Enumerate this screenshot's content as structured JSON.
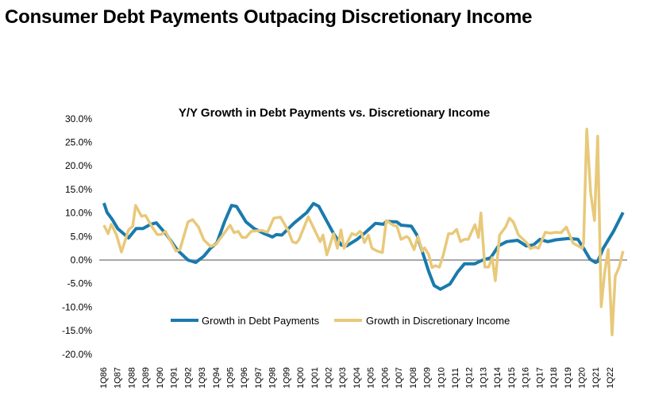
{
  "page_title": "Consumer Debt Payments Outpacing Discretionary Income",
  "chart_data": {
    "type": "line",
    "title": "Y/Y Growth in Debt Payments vs. Discretionary Income",
    "xlabel": "",
    "ylabel": "",
    "ylim": [
      -20,
      30
    ],
    "yticks": [
      30,
      25,
      20,
      15,
      10,
      5,
      0,
      -5,
      -10,
      -15,
      -20
    ],
    "ytick_labels": [
      "30.0%",
      "25.0%",
      "20.0%",
      "15.0%",
      "10.0%",
      "5.0%",
      "0.0%",
      "-5.0%",
      "-10.0%",
      "-15.0%",
      "-20.0%"
    ],
    "xtick_labels": [
      "1Q86",
      "1Q87",
      "1Q88",
      "1Q89",
      "1Q90",
      "1Q91",
      "1Q92",
      "1Q93",
      "1Q94",
      "1Q95",
      "1Q96",
      "1Q97",
      "1Q98",
      "1Q99",
      "1Q00",
      "1Q01",
      "1Q02",
      "1Q03",
      "1Q04",
      "1Q05",
      "1Q06",
      "1Q07",
      "1Q08",
      "1Q09",
      "1Q10",
      "1Q11",
      "1Q12",
      "1Q13",
      "1Q14",
      "1Q15",
      "1Q16",
      "1Q17",
      "1Q18",
      "1Q19",
      "1Q20",
      "1Q21",
      "1Q22"
    ],
    "x_start": "1Q86",
    "legend_position": "bottom-center",
    "grid": false,
    "series": [
      {
        "name": "Growth in Debt Payments",
        "color": "#1a7aad",
        "points": [
          [
            0.2,
            12.1
          ],
          [
            1.1,
            10.1
          ],
          [
            2.6,
            8.6
          ],
          [
            4.1,
            6.7
          ],
          [
            7.2,
            4.7
          ],
          [
            9.4,
            6.7
          ],
          [
            11.3,
            6.7
          ],
          [
            13.5,
            7.6
          ],
          [
            15.1,
            7.9
          ],
          [
            18.1,
            5.3
          ],
          [
            21.0,
            2.2
          ],
          [
            24.1,
            0.0
          ],
          [
            26.3,
            -0.5
          ],
          [
            28.6,
            0.8
          ],
          [
            30.5,
            2.5
          ],
          [
            32.3,
            3.6
          ],
          [
            34.5,
            8.1
          ],
          [
            36.5,
            11.6
          ],
          [
            37.9,
            11.4
          ],
          [
            40.6,
            8.1
          ],
          [
            42.9,
            6.7
          ],
          [
            45.8,
            5.6
          ],
          [
            48.1,
            4.9
          ],
          [
            49.2,
            5.4
          ],
          [
            50.8,
            5.3
          ],
          [
            54.2,
            7.8
          ],
          [
            57.9,
            10.1
          ],
          [
            59.8,
            12.0
          ],
          [
            61.3,
            11.4
          ],
          [
            65.5,
            5.6
          ],
          [
            67.7,
            3.2
          ],
          [
            69.2,
            3.0
          ],
          [
            72.2,
            4.4
          ],
          [
            74.5,
            5.8
          ],
          [
            77.4,
            7.8
          ],
          [
            79.7,
            7.6
          ],
          [
            80.5,
            8.2
          ],
          [
            83.5,
            8.1
          ],
          [
            84.7,
            7.4
          ],
          [
            87.6,
            7.2
          ],
          [
            89.2,
            5.3
          ],
          [
            90.7,
            1.9
          ],
          [
            92.6,
            -2.5
          ],
          [
            94.1,
            -5.4
          ],
          [
            95.9,
            -6.2
          ],
          [
            98.6,
            -5.1
          ],
          [
            100.8,
            -2.5
          ],
          [
            102.7,
            -0.8
          ],
          [
            105.6,
            -0.8
          ],
          [
            107.9,
            0.0
          ],
          [
            110.2,
            0.5
          ],
          [
            112.4,
            3.0
          ],
          [
            114.7,
            3.9
          ],
          [
            117.8,
            4.2
          ],
          [
            120.3,
            3.0
          ],
          [
            122.3,
            3.2
          ],
          [
            124.2,
            4.4
          ],
          [
            126.4,
            3.9
          ],
          [
            128.7,
            4.3
          ],
          [
            132.4,
            4.6
          ],
          [
            135.0,
            4.4
          ],
          [
            136.6,
            2.5
          ],
          [
            138.4,
            0.2
          ],
          [
            140.0,
            -0.5
          ],
          [
            140.6,
            -0.3
          ],
          [
            142.2,
            2.5
          ],
          [
            145.1,
            6.1
          ],
          [
            147.8,
            10.1
          ]
        ]
      },
      {
        "name": "Growth in Discretionary Income",
        "color": "#e8c97a",
        "points": [
          [
            0.2,
            7.4
          ],
          [
            1.4,
            5.6
          ],
          [
            2.3,
            7.6
          ],
          [
            3.8,
            5.3
          ],
          [
            5.2,
            1.7
          ],
          [
            7.2,
            6.4
          ],
          [
            8.4,
            7.2
          ],
          [
            9.2,
            11.6
          ],
          [
            10.9,
            9.3
          ],
          [
            12.0,
            9.5
          ],
          [
            13.9,
            7.0
          ],
          [
            15.4,
            5.4
          ],
          [
            16.5,
            5.4
          ],
          [
            17.7,
            6.1
          ],
          [
            20.7,
            1.9
          ],
          [
            21.8,
            2.2
          ],
          [
            24.1,
            8.1
          ],
          [
            25.4,
            8.6
          ],
          [
            27.1,
            7.0
          ],
          [
            28.6,
            4.3
          ],
          [
            30.5,
            2.9
          ],
          [
            32.0,
            3.3
          ],
          [
            36.1,
            7.4
          ],
          [
            37.2,
            5.8
          ],
          [
            38.4,
            6.1
          ],
          [
            39.5,
            4.8
          ],
          [
            40.6,
            4.8
          ],
          [
            42.1,
            6.1
          ],
          [
            45.1,
            6.3
          ],
          [
            46.7,
            5.9
          ],
          [
            48.5,
            8.9
          ],
          [
            50.4,
            9.1
          ],
          [
            52.7,
            6.1
          ],
          [
            53.8,
            3.9
          ],
          [
            54.9,
            3.6
          ],
          [
            55.7,
            4.4
          ],
          [
            58.3,
            9.2
          ],
          [
            61.7,
            3.9
          ],
          [
            62.5,
            5.3
          ],
          [
            63.6,
            1.1
          ],
          [
            65.5,
            5.6
          ],
          [
            66.6,
            2.5
          ],
          [
            67.6,
            6.4
          ],
          [
            68.5,
            2.5
          ],
          [
            70.7,
            5.6
          ],
          [
            71.9,
            5.3
          ],
          [
            73.0,
            6.1
          ],
          [
            73.4,
            5.8
          ],
          [
            74.3,
            3.7
          ],
          [
            75.4,
            5.3
          ],
          [
            76.4,
            2.5
          ],
          [
            77.9,
            1.9
          ],
          [
            79.4,
            1.6
          ],
          [
            80.5,
            8.4
          ],
          [
            82.4,
            7.4
          ],
          [
            83.5,
            7.2
          ],
          [
            84.7,
            4.4
          ],
          [
            86.2,
            5.0
          ],
          [
            86.9,
            4.7
          ],
          [
            88.4,
            2.2
          ],
          [
            89.5,
            5.0
          ],
          [
            90.7,
            1.9
          ],
          [
            91.4,
            2.6
          ],
          [
            92.6,
            1.1
          ],
          [
            93.5,
            -1.6
          ],
          [
            94.4,
            -1.2
          ],
          [
            95.6,
            -1.5
          ],
          [
            96.7,
            1.1
          ],
          [
            98.2,
            5.6
          ],
          [
            99.3,
            5.6
          ],
          [
            100.5,
            6.5
          ],
          [
            101.6,
            3.9
          ],
          [
            102.7,
            4.4
          ],
          [
            103.8,
            4.4
          ],
          [
            105.7,
            7.5
          ],
          [
            106.7,
            4.8
          ],
          [
            107.4,
            10.0
          ],
          [
            108.5,
            -1.5
          ],
          [
            109.6,
            -1.5
          ],
          [
            110.6,
            0.5
          ],
          [
            111.5,
            -4.4
          ],
          [
            112.7,
            5.3
          ],
          [
            114.4,
            7.0
          ],
          [
            115.5,
            8.9
          ],
          [
            116.6,
            8.1
          ],
          [
            118.1,
            5.3
          ],
          [
            120.4,
            3.7
          ],
          [
            121.5,
            2.4
          ],
          [
            122.6,
            2.8
          ],
          [
            123.8,
            2.5
          ],
          [
            125.7,
            5.9
          ],
          [
            127.2,
            5.7
          ],
          [
            128.7,
            5.9
          ],
          [
            130.2,
            5.8
          ],
          [
            131.7,
            7.0
          ],
          [
            133.6,
            3.6
          ],
          [
            136.2,
            2.5
          ],
          [
            136.6,
            3.6
          ],
          [
            137.5,
            27.8
          ],
          [
            138.6,
            14.3
          ],
          [
            139.7,
            8.4
          ],
          [
            140.6,
            26.3
          ],
          [
            141.6,
            -9.9
          ],
          [
            142.6,
            -2.6
          ],
          [
            143.6,
            2.2
          ],
          [
            144.7,
            -15.9
          ],
          [
            145.6,
            -3.4
          ],
          [
            146.7,
            -1.5
          ],
          [
            147.8,
            1.9
          ]
        ]
      }
    ]
  }
}
